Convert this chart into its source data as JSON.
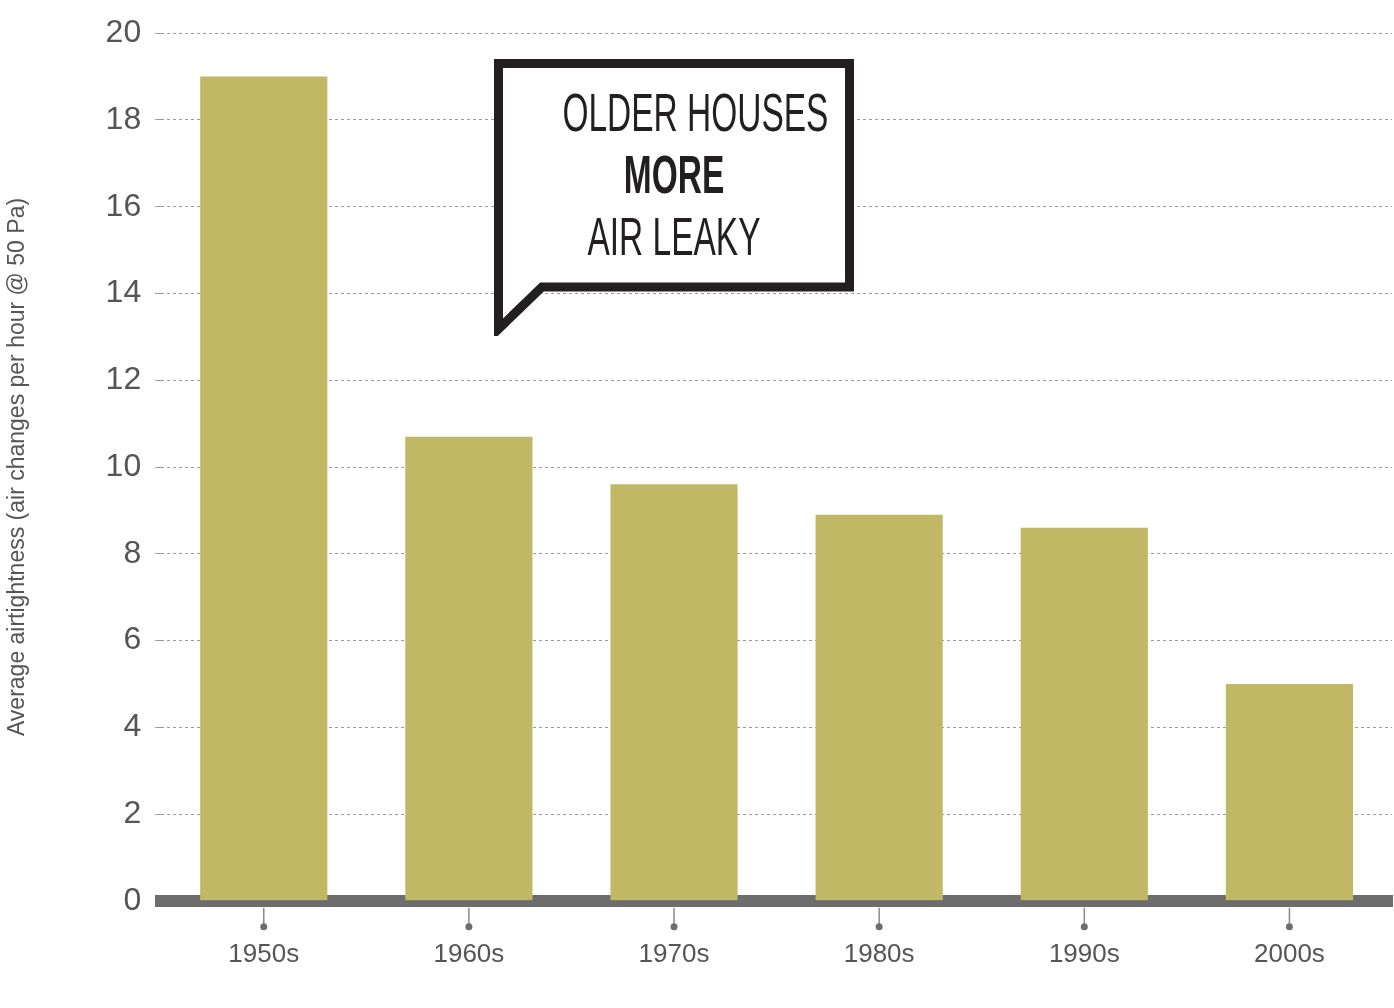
{
  "chart_data": {
    "type": "bar",
    "ylabel": "Average airtightness (air changes per hour @ 50 Pa)",
    "categories": [
      "1950s",
      "1960s",
      "1970s",
      "1980s",
      "1990s",
      "2000s"
    ],
    "values": [
      19.0,
      10.7,
      9.6,
      8.9,
      8.6,
      5.0
    ],
    "color": "#c0b865",
    "ylim": [
      0,
      20
    ],
    "yticks": [
      0,
      2,
      4,
      6,
      8,
      10,
      12,
      14,
      16,
      18,
      20
    ],
    "grid": "y",
    "annotations": [
      "OLDER HOUSES",
      "MORE",
      "AIR LEAKY"
    ]
  }
}
